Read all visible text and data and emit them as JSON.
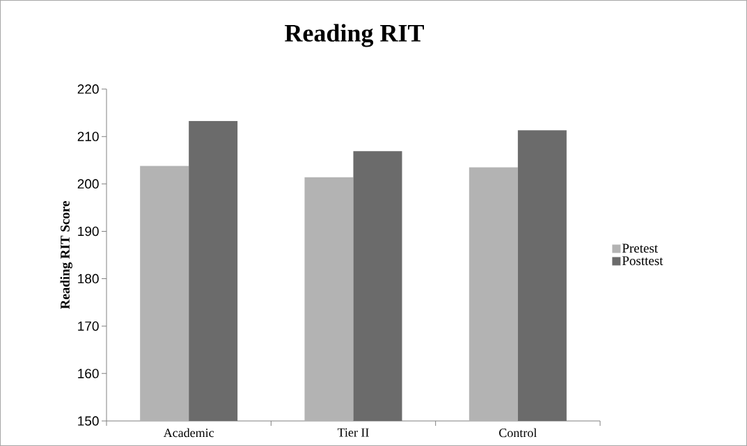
{
  "chart_data": {
    "type": "bar",
    "title": "Reading RIT",
    "ylabel": "Reading RIT Score",
    "categories": [
      "Academic",
      "Tier II",
      "Control"
    ],
    "series": [
      {
        "name": "Pretest",
        "color": "#b3b3b3",
        "values": [
          203.8,
          201.4,
          203.5
        ]
      },
      {
        "name": "Posttest",
        "color": "#6b6b6b",
        "values": [
          213.3,
          206.9,
          211.3
        ]
      }
    ],
    "ylim": [
      150,
      220
    ],
    "yticks": [
      150,
      160,
      170,
      180,
      190,
      200,
      210,
      220
    ],
    "grid": false,
    "legend": "right"
  }
}
